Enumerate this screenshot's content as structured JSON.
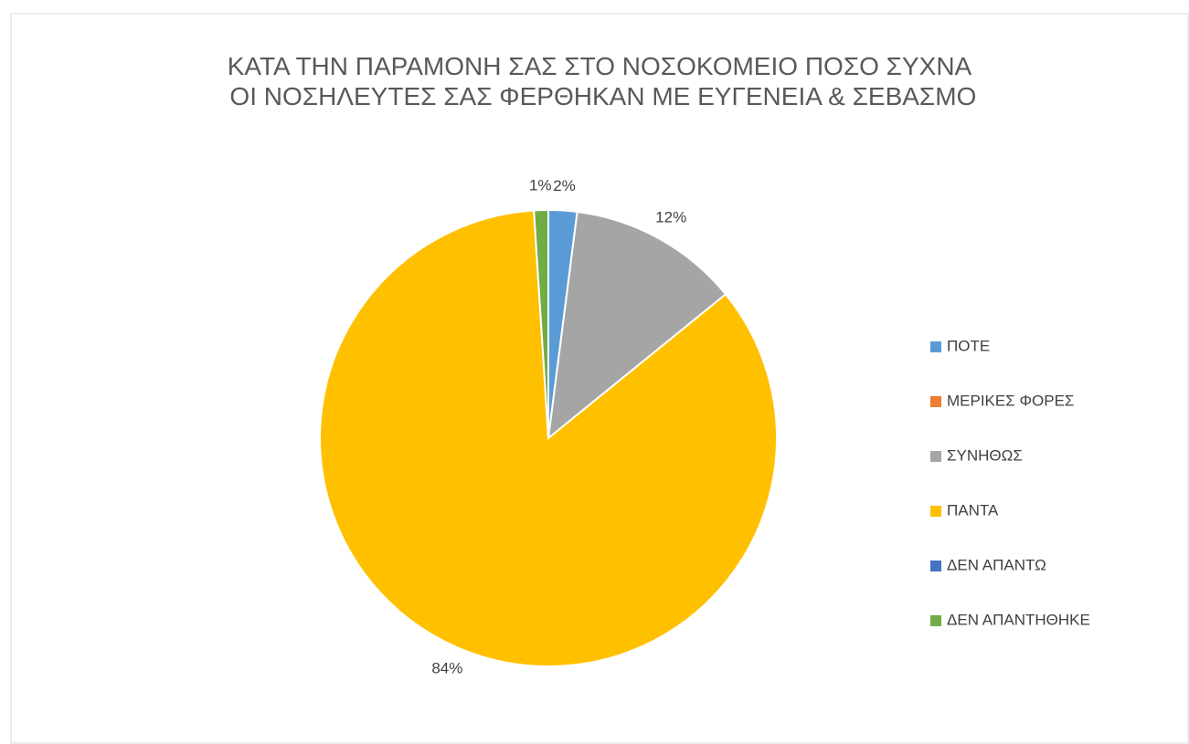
{
  "chart_data": {
    "type": "pie",
    "title": "ΚΑΤΑ ΤΗΝ ΠΑΡΑΜΟΝΗ ΣΑΣ ΣΤΟ ΝΟΣΟΚΟΜΕΙΟ ΠΟΣΟ ΣΥΧΝΑ ΟΙ ΝΟΣΗΛΕΥΤΕΣ ΣΑΣ ΦΕΡΘΗΚΑΝ ΜΕ ΕΥΓΕΝΕΙΑ & ΣΕΒΑΣΜΟ",
    "categories": [
      "ΠΟΤΕ",
      "ΜΕΡΙΚΕΣ ΦΟΡΕΣ",
      "ΣΥΝΗΘΩΣ",
      "ΠΑΝΤΑ",
      "ΔΕΝ ΑΠΑΝΤΩ",
      "ΔΕΝ ΑΠΑΝΤΗΘΗΚΕ"
    ],
    "values": [
      2,
      0,
      12,
      84,
      0,
      1
    ],
    "value_labels": [
      "2%",
      null,
      "12%",
      "84%",
      null,
      "1%"
    ],
    "colors": [
      "#5b9bd5",
      "#ed7d31",
      "#a5a5a5",
      "#ffc000",
      "#4472c4",
      "#70ad47"
    ],
    "legend": "right"
  }
}
